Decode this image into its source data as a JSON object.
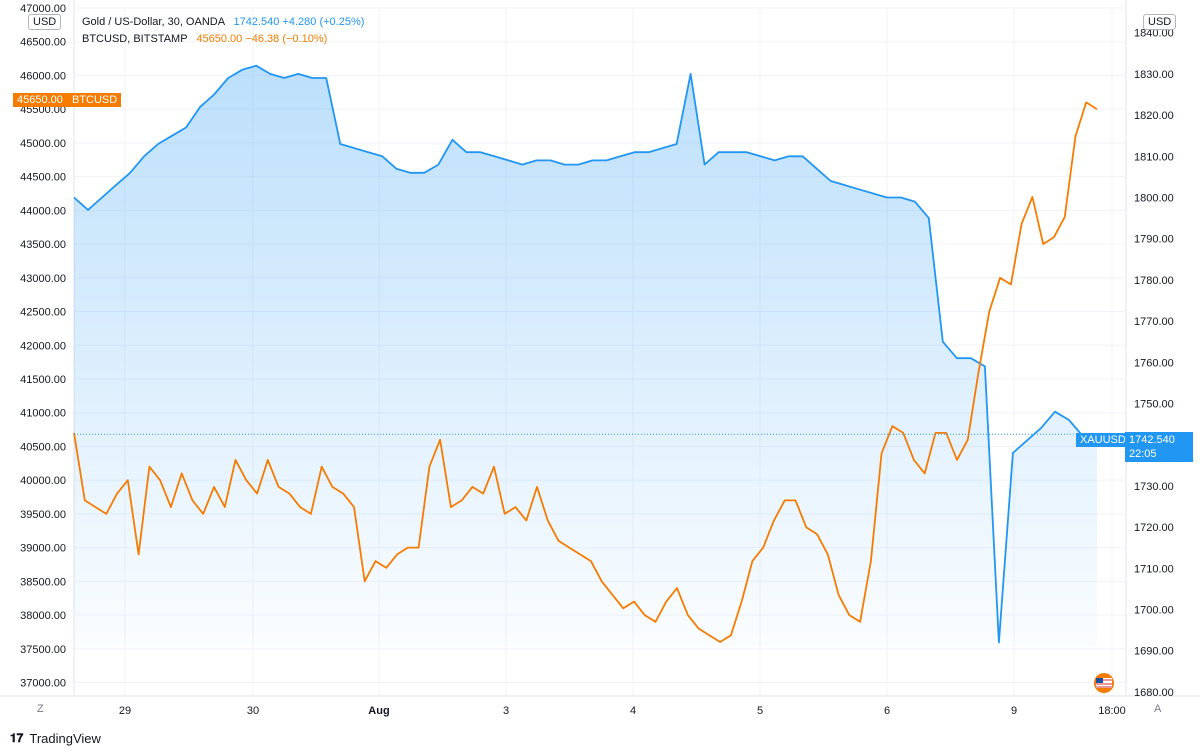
{
  "legend": {
    "gold_name": "Gold  / US-Dollar, 30, OANDA",
    "gold_value": "1742.540  +4.280 (+0.25%)",
    "btc_name": "BTCUSD, BITSTAMP",
    "btc_value": "45650.00  −46.38 (−0.10%)"
  },
  "axes": {
    "left_unit": "USD",
    "right_unit": "USD",
    "left_mode_button": "Z",
    "right_mode_button": "A"
  },
  "tags": {
    "btc_price": "45650.00",
    "btc_label": "BTCUSD",
    "gold_label": "XAUUSD",
    "gold_price": "1742.540",
    "gold_countdown": "22:05"
  },
  "footer": {
    "brand": "TradingView"
  },
  "colors": {
    "gold": "#2196f3",
    "btc": "#f57c00",
    "grid": "#f0f3fa"
  },
  "chart_data": {
    "type": "line",
    "x_ticks": [
      "29",
      "30",
      "Aug",
      "3",
      "4",
      "5",
      "6",
      "9",
      "18:00"
    ],
    "left_axis": {
      "unit": "USD",
      "range": [
        36800,
        47000
      ],
      "ticks": [
        37000,
        37500,
        38000,
        38500,
        39000,
        39500,
        40000,
        40500,
        41000,
        41500,
        42000,
        42500,
        43000,
        43500,
        44000,
        44500,
        45000,
        45500,
        46000,
        46500,
        47000
      ]
    },
    "right_axis": {
      "unit": "USD",
      "range": [
        1679,
        1846
      ],
      "ticks": [
        1680,
        1690,
        1700,
        1710,
        1720,
        1730,
        1740,
        1750,
        1760,
        1770,
        1780,
        1790,
        1800,
        1810,
        1820,
        1830,
        1840
      ]
    },
    "series": [
      {
        "name": "BTCUSD, BITSTAMP",
        "axis": "left",
        "style": "line",
        "values": [
          40700,
          39700,
          39600,
          39500,
          39800,
          40000,
          38900,
          40200,
          40000,
          39600,
          40100,
          39700,
          39500,
          39900,
          39600,
          40300,
          40000,
          39800,
          40300,
          39900,
          39800,
          39600,
          39500,
          40200,
          39900,
          39800,
          39600,
          38500,
          38800,
          38700,
          38900,
          39000,
          39000,
          40200,
          40600,
          39600,
          39700,
          39900,
          39800,
          40200,
          39500,
          39600,
          39400,
          39900,
          39400,
          39100,
          39000,
          38900,
          38800,
          38500,
          38300,
          38100,
          38200,
          38000,
          37900,
          38200,
          38400,
          38000,
          37800,
          37700,
          37600,
          37700,
          38200,
          38800,
          39000,
          39400,
          39700,
          39700,
          39300,
          39200,
          38900,
          38300,
          38000,
          37900,
          38800,
          40400,
          40800,
          40700,
          40300,
          40100,
          40700,
          40700,
          40300,
          40600,
          41600,
          42500,
          43000,
          42900,
          43800,
          44200,
          43500,
          43600,
          43900,
          45100,
          45600,
          45500
        ]
      },
      {
        "name": "Gold  / US-Dollar, 30, OANDA",
        "axis": "right",
        "style": "area",
        "values": [
          1800,
          1797,
          1800,
          1803,
          1806,
          1810,
          1813,
          1815,
          1817,
          1822,
          1825,
          1829,
          1831,
          1832,
          1830,
          1829,
          1830,
          1829,
          1829,
          1813,
          1812,
          1811,
          1810,
          1807,
          1806,
          1806,
          1808,
          1814,
          1811,
          1811,
          1810,
          1809,
          1808,
          1809,
          1809,
          1808,
          1808,
          1809,
          1809,
          1810,
          1811,
          1811,
          1812,
          1813,
          1830,
          1808,
          1811,
          1811,
          1811,
          1810,
          1809,
          1810,
          1810,
          1807,
          1804,
          1803,
          1802,
          1801,
          1800,
          1800,
          1799,
          1795,
          1765,
          1761,
          1761,
          1759,
          1692,
          1738,
          1741,
          1744,
          1748,
          1746,
          1742,
          1741
        ]
      }
    ],
    "last_values": {
      "btc": 45650.0,
      "gold": 1742.54
    }
  }
}
